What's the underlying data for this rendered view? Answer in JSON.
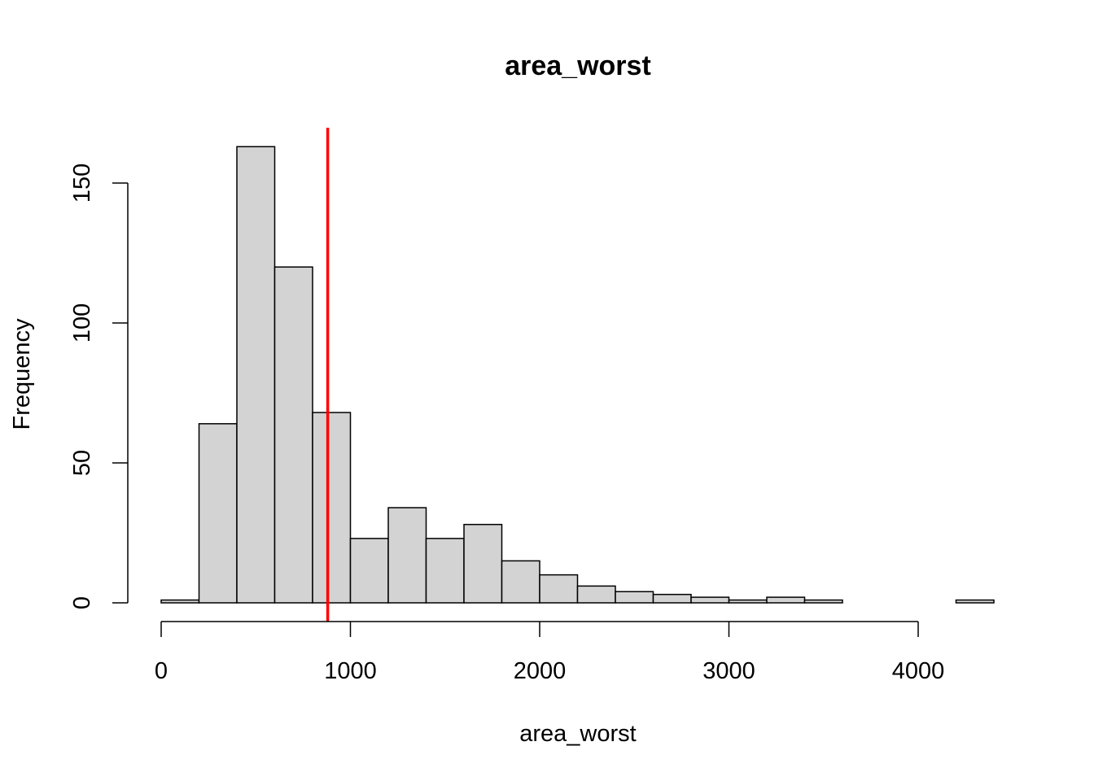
{
  "chart_data": {
    "type": "bar",
    "title": "area_worst",
    "xlabel": "area_worst",
    "ylabel": "Frequency",
    "bin_edges": [
      0,
      200,
      400,
      600,
      800,
      1000,
      1200,
      1400,
      1600,
      1800,
      2000,
      2200,
      2400,
      2600,
      2800,
      3000,
      3200,
      3400,
      3600,
      3800,
      4000,
      4200,
      4400
    ],
    "values": [
      1,
      64,
      163,
      120,
      68,
      23,
      34,
      23,
      28,
      15,
      10,
      6,
      4,
      3,
      2,
      1,
      2,
      1,
      0,
      0,
      0,
      1
    ],
    "xlim": [
      0,
      4400
    ],
    "ylim": [
      0,
      170
    ],
    "x_ticks": [
      0,
      1000,
      2000,
      3000,
      4000
    ],
    "y_ticks": [
      0,
      50,
      100,
      150
    ],
    "x_tick_labels": [
      "0",
      "1000",
      "2000",
      "3000",
      "4000"
    ],
    "y_tick_labels": [
      "0",
      "50",
      "100",
      "150"
    ],
    "reference_line": {
      "x": 880,
      "color": "#ff0000"
    },
    "bar_fill": "#d3d3d3",
    "bar_stroke": "#000000",
    "grid": false,
    "legend": "none"
  }
}
